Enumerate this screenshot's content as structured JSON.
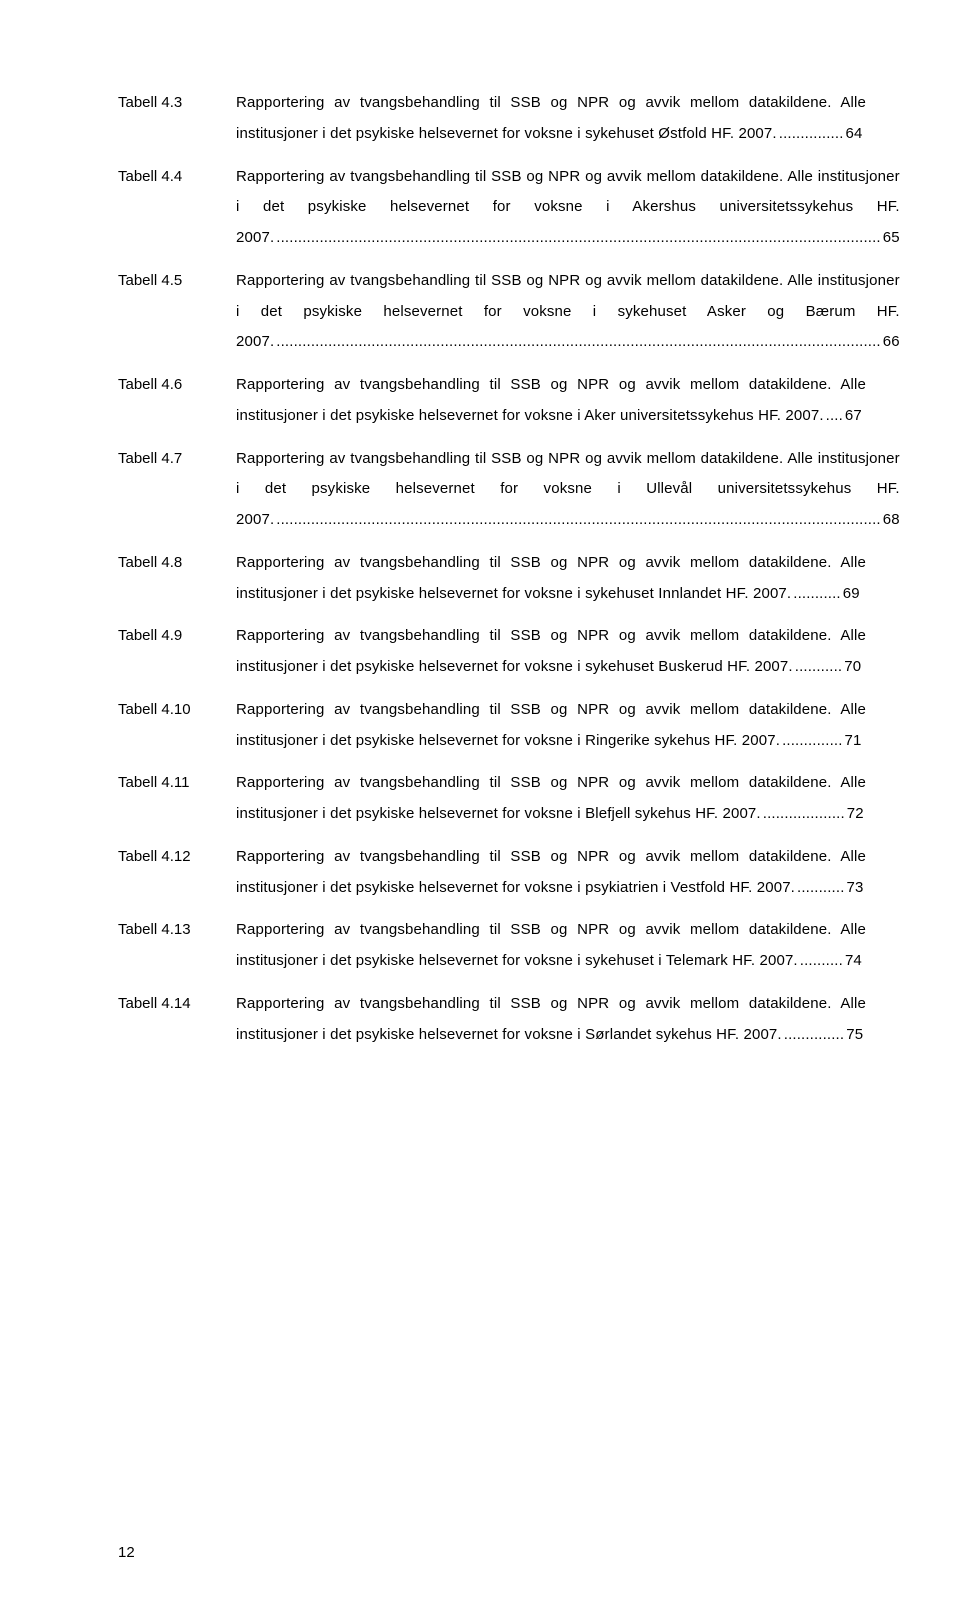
{
  "page_number": "12",
  "entries": [
    {
      "label": "Tabell 4.3",
      "text": "Rapportering av tvangsbehandling til SSB og NPR og avvik mellom datakildene. Alle institusjoner i det psykiske helsevernet for voksne i sykehuset Østfold HF. 2007.",
      "page": "64"
    },
    {
      "label": "Tabell 4.4",
      "text": "Rapportering av tvangsbehandling til SSB og NPR og avvik mellom datakildene. Alle institusjoner i det psykiske helsevernet for voksne i Akershus universitetssykehus HF. 2007.",
      "page": "65"
    },
    {
      "label": "Tabell 4.5",
      "text": "Rapportering av tvangsbehandling til SSB og NPR og avvik mellom datakildene. Alle institusjoner i det psykiske helsevernet for voksne i sykehuset Asker og Bærum HF. 2007.",
      "page": "66"
    },
    {
      "label": "Tabell 4.6",
      "text": "Rapportering av tvangsbehandling til SSB og NPR og avvik mellom datakildene. Alle institusjoner i det psykiske helsevernet for voksne i Aker universitetssykehus HF. 2007.",
      "page": "67"
    },
    {
      "label": "Tabell 4.7",
      "text": "Rapportering av tvangsbehandling til SSB og NPR og avvik mellom datakildene. Alle institusjoner i det psykiske helsevernet for voksne i Ullevål universitetssykehus HF. 2007.",
      "page": "68"
    },
    {
      "label": "Tabell 4.8",
      "text": "Rapportering av tvangsbehandling til SSB og NPR og avvik mellom datakildene. Alle institusjoner i det psykiske helsevernet for voksne i sykehuset Innlandet HF. 2007.",
      "page": "69"
    },
    {
      "label": "Tabell 4.9",
      "text": "Rapportering av tvangsbehandling til SSB og NPR og avvik mellom datakildene. Alle institusjoner i det psykiske helsevernet for voksne i sykehuset Buskerud HF. 2007.",
      "page": "70"
    },
    {
      "label": "Tabell 4.10",
      "text": "Rapportering av tvangsbehandling til SSB og NPR og avvik mellom datakildene. Alle institusjoner i det psykiske helsevernet for voksne i Ringerike sykehus HF. 2007.",
      "page": "71"
    },
    {
      "label": "Tabell 4.11",
      "text": "Rapportering av tvangsbehandling til SSB og NPR og avvik mellom datakildene. Alle institusjoner i det psykiske helsevernet for voksne i Blefjell sykehus HF. 2007.",
      "page": "72"
    },
    {
      "label": "Tabell 4.12",
      "text": "Rapportering av tvangsbehandling til SSB og NPR og avvik mellom datakildene. Alle institusjoner i det psykiske helsevernet for voksne i psykiatrien i Vestfold HF. 2007.",
      "page": "73"
    },
    {
      "label": "Tabell 4.13",
      "text": "Rapportering av tvangsbehandling til SSB og NPR og avvik mellom datakildene. Alle institusjoner i det psykiske helsevernet for voksne i sykehuset i Telemark HF. 2007.",
      "page": "74"
    },
    {
      "label": "Tabell 4.14",
      "text": "Rapportering av tvangsbehandling til SSB og NPR og avvik mellom datakildene. Alle institusjoner i det psykiske helsevernet for voksne i Sørlandet sykehus HF. 2007.",
      "page": "75"
    }
  ]
}
